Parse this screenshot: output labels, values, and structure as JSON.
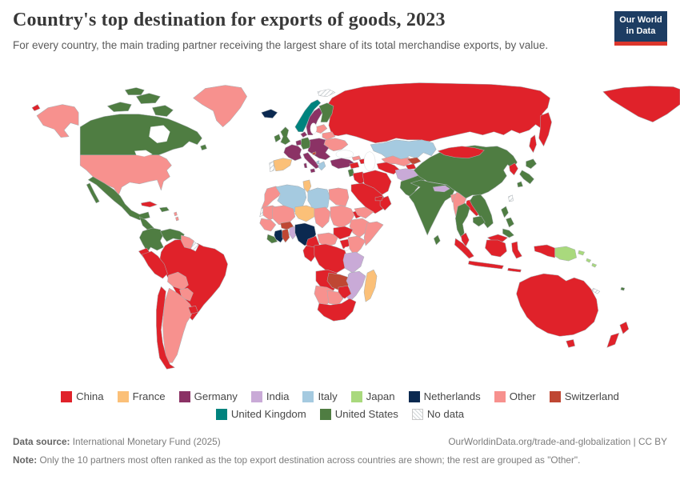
{
  "header": {
    "title": "Country's top destination for exports of goods, 2023",
    "subtitle": "For every country, the main trading partner receiving the largest share of its total merchandise exports, by value.",
    "logo": {
      "line1": "Our World",
      "line2": "in Data"
    }
  },
  "legend": {
    "no_data_label": "No data",
    "rows": [
      [
        "China",
        "France",
        "Germany",
        "India",
        "Italy",
        "Japan",
        "Netherlands",
        "Other",
        "Switzerland"
      ],
      [
        "United Kingdom",
        "United States",
        "No data"
      ]
    ]
  },
  "chart_data": {
    "type": "choropleth_map",
    "title": "Country's top destination for exports of goods, 2023",
    "palette": {
      "China": "#e0222a",
      "France": "#fbc078",
      "Germany": "#8b3265",
      "India": "#c9aad7",
      "Italy": "#a5cae0",
      "Japan": "#a9d97d",
      "Netherlands": "#0b2950",
      "Other": "#f7918e",
      "Switzerland": "#bf4733",
      "United Kingdom": "#00837e",
      "United States": "#4f7d42"
    },
    "assignments": {
      "canada": "United States",
      "greenland": "Other",
      "united-states": "Other",
      "mexico": "United States",
      "central-america": "United States",
      "cuba": "China",
      "hispaniola": "United States",
      "lesser-antilles": "Other",
      "colombia": "United States",
      "venezuela": "United States",
      "guyana-suriname": "Other",
      "french-guiana": "No data",
      "brazil": "China",
      "ecuador": "China",
      "peru": "China",
      "bolivia": "Other",
      "paraguay": "Other",
      "uruguay": "China",
      "argentina": "Other",
      "chile": "China",
      "iceland": "Netherlands",
      "norway": "United Kingdom",
      "sweden": "Germany",
      "finland": "United States",
      "denmark": "Germany",
      "united-kingdom": "United States",
      "ireland": "United States",
      "baltics": "Other",
      "belarus": "Other",
      "ukraine": "Other",
      "central-europe": "Germany",
      "germany": "United States",
      "benelux": "Germany",
      "france": "Germany",
      "spain": "France",
      "portugal": "No data",
      "italy": "Germany",
      "slovenia": "Switzerland",
      "greece": "Italy",
      "albania": "Italy",
      "turkey": "Germany",
      "svalbard": "No data",
      "russia": "China",
      "morocco": "Other",
      "western-sahara": "No data",
      "algeria": "Italy",
      "tunisia": "France",
      "libya": "Italy",
      "egypt": "Other",
      "mauritania": "Other",
      "mali": "Other",
      "senegal-guinea": "Other",
      "liberia": "United States",
      "cote-divoire": "Netherlands",
      "ghana": "Switzerland",
      "burkina-faso": "Switzerland",
      "togo-benin": "India",
      "niger": "France",
      "nigeria": "Netherlands",
      "chad": "Other",
      "sudan": "Other",
      "eritrea": "China",
      "ethiopia": "Other",
      "somalia": "Other",
      "cameroon": "China",
      "central-african-republic": "Other",
      "south-sudan": "China",
      "uganda": "China",
      "kenya": "Other",
      "drc": "China",
      "congo-gabon": "China",
      "tanzania": "India",
      "angola": "China",
      "zambia": "Switzerland",
      "malawi": "India",
      "mozambique": "India",
      "zimbabwe": "China",
      "namibia": "Other",
      "botswana": "Other",
      "south-africa": "China",
      "madagascar": "France",
      "syria": "China",
      "israel-jordan": "United States",
      "iraq": "China",
      "iran": "China",
      "saudi-arabia": "China",
      "yemen": "Other",
      "oman": "China",
      "uae": "China",
      "georgia": "Other",
      "azerbaijan-armenia": "China",
      "kazakhstan": "Italy",
      "uzbekistan": "Other",
      "turkmenistan": "China",
      "kyrgyzstan": "Switzerland",
      "tajikistan": "China",
      "afghanistan": "India",
      "pakistan": "United States",
      "india": "United States",
      "nepal-bhutan": "India",
      "bangladesh": "Other",
      "myanmar": "Other",
      "sri-lanka": "United States",
      "china": "United States",
      "mongolia": "China",
      "korea": "China",
      "japan": "United States",
      "taiwan": "No data",
      "thailand": "United States",
      "laos": "China",
      "vietnam": "United States",
      "cambodia": "United States",
      "malaysia": "China",
      "indonesia": "China",
      "philippines": "United States",
      "papua-new-guinea": "Japan",
      "solomon-islands": "Japan",
      "fiji": "United States",
      "new-caledonia": "No data",
      "australia": "China",
      "new-zealand": "China"
    }
  },
  "footer": {
    "source_label": "Data source:",
    "source_value": "International Monetary Fund (2025)",
    "link": "OurWorldinData.org/trade-and-globalization | CC BY",
    "note_label": "Note:",
    "note_text": "Only the 10 partners most often ranked as the top export destination across countries are shown; the rest are grouped as \"Other\"."
  }
}
